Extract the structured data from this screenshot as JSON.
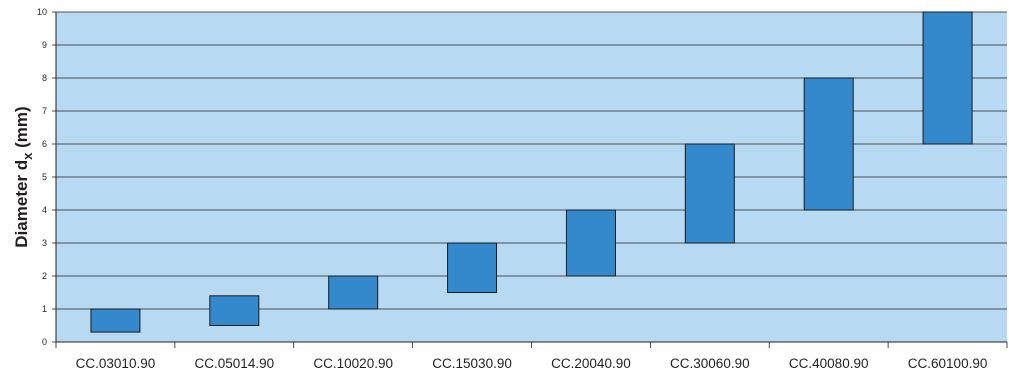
{
  "chart_data": {
    "type": "bar",
    "subtype": "floating-range",
    "title": "",
    "xlabel": "",
    "ylabel": "Diameter d",
    "ylabel_subscript": "x",
    "ylabel_suffix": " (mm)",
    "ylim": [
      0,
      10
    ],
    "yticks": [
      0,
      1,
      2,
      3,
      4,
      5,
      6,
      7,
      8,
      9,
      10
    ],
    "grid": true,
    "legend": "none",
    "categories": [
      "CC.03010.90",
      "CC.05014.90",
      "CC.10020.90",
      "CC.15030.90",
      "CC.20040.90",
      "CC.30060.90",
      "CC.40080.90",
      "CC.60100.90"
    ],
    "ranges": [
      {
        "low": 0.3,
        "high": 1.0
      },
      {
        "low": 0.5,
        "high": 1.4
      },
      {
        "low": 1.0,
        "high": 2.0
      },
      {
        "low": 1.5,
        "high": 3.0
      },
      {
        "low": 2.0,
        "high": 4.0
      },
      {
        "low": 3.0,
        "high": 6.0
      },
      {
        "low": 4.0,
        "high": 8.0
      },
      {
        "low": 6.0,
        "high": 10.0
      }
    ],
    "colors": {
      "plot_background": "#b7daf2",
      "bar_fill": "#3389cc",
      "bar_stroke": "#1a1a1a",
      "gridline": "#231f20",
      "text": "#231f20"
    }
  }
}
